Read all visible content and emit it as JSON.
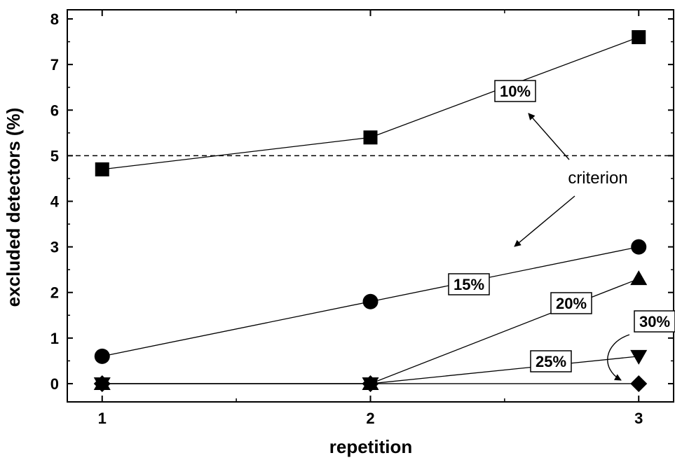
{
  "chart_data": {
    "type": "line",
    "xlabel": "repetition",
    "ylabel": "excluded detectors (%)",
    "x": [
      1,
      2,
      3
    ],
    "xlim": [
      0.87,
      3.13
    ],
    "ylim": [
      -0.4,
      8.2
    ],
    "xticks": [
      "1",
      "2",
      "3"
    ],
    "yticks": [
      "0",
      "1",
      "2",
      "3",
      "4",
      "5",
      "6",
      "7",
      "8"
    ],
    "grid": false,
    "reference_line": {
      "y": 5,
      "style": "dashed"
    },
    "series": [
      {
        "name": "10%",
        "marker": "square",
        "values": [
          4.7,
          5.4,
          7.6
        ]
      },
      {
        "name": "15%",
        "marker": "circle",
        "values": [
          0.6,
          1.8,
          3.0
        ]
      },
      {
        "name": "20%",
        "marker": "triangle-up",
        "values": [
          0,
          0,
          2.3
        ]
      },
      {
        "name": "25%",
        "marker": "triangle-down",
        "values": [
          0,
          0,
          0.6
        ]
      },
      {
        "name": "30%",
        "marker": "diamond",
        "values": [
          0,
          0,
          0
        ]
      }
    ],
    "annotations": [
      "criterion"
    ]
  }
}
